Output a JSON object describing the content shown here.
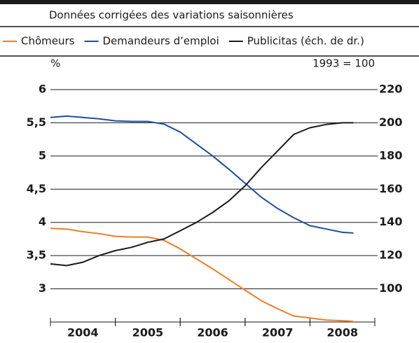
{
  "chart_data": {
    "type": "line",
    "subtitle": "Données corrigées des variations saisonnières",
    "ylabel": "%",
    "y2label": "1993 = 100",
    "x": [
      2004,
      2004.25,
      2004.5,
      2004.75,
      2005,
      2005.25,
      2005.5,
      2005.75,
      2006,
      2006.25,
      2006.5,
      2006.75,
      2007,
      2007.25,
      2007.5,
      2007.75,
      2008,
      2008.25,
      2008.5,
      2008.67
    ],
    "xlim": [
      2004,
      2009
    ],
    "xticks": [
      {
        "value": 2004.5,
        "label": "2004"
      },
      {
        "value": 2005.5,
        "label": "2005"
      },
      {
        "value": 2006.5,
        "label": "2006"
      },
      {
        "value": 2007.5,
        "label": "2007"
      },
      {
        "value": 2008.5,
        "label": "2008"
      }
    ],
    "ylim": [
      2.5,
      6.2
    ],
    "yticks": [
      {
        "value": 3,
        "label": "3"
      },
      {
        "value": 3.5,
        "label": "3,5"
      },
      {
        "value": 4,
        "label": "4"
      },
      {
        "value": 4.5,
        "label": "4,5"
      },
      {
        "value": 5,
        "label": "5"
      },
      {
        "value": 5.5,
        "label": "5,5"
      },
      {
        "value": 6,
        "label": "6"
      }
    ],
    "y2lim": [
      80,
      228
    ],
    "y2ticks": [
      100,
      120,
      140,
      160,
      180,
      200,
      220
    ],
    "grid": true,
    "series": [
      {
        "name": "Chômeurs",
        "color": "#f07c24",
        "values": [
          3.91,
          3.9,
          3.86,
          3.83,
          3.79,
          3.78,
          3.78,
          3.73,
          3.6,
          3.45,
          3.3,
          3.14,
          2.98,
          2.82,
          2.7,
          2.59,
          2.56,
          2.53,
          2.52,
          2.51
        ]
      },
      {
        "name": "Demandeurs d’emploi",
        "color": "#1f4e9c",
        "values": [
          5.58,
          5.6,
          5.58,
          5.56,
          5.53,
          5.52,
          5.52,
          5.48,
          5.36,
          5.18,
          5.0,
          4.8,
          4.59,
          4.38,
          4.21,
          4.07,
          3.95,
          3.9,
          3.85,
          3.84
        ]
      },
      {
        "name": "Publicitas (éch. de dr.)",
        "color": "#1a1a1a",
        "axis": "y2",
        "values": [
          115,
          114,
          116,
          120,
          123,
          125,
          128,
          130,
          135,
          140,
          146,
          153,
          162,
          173,
          183,
          193,
          197,
          199,
          200,
          200
        ]
      }
    ]
  }
}
